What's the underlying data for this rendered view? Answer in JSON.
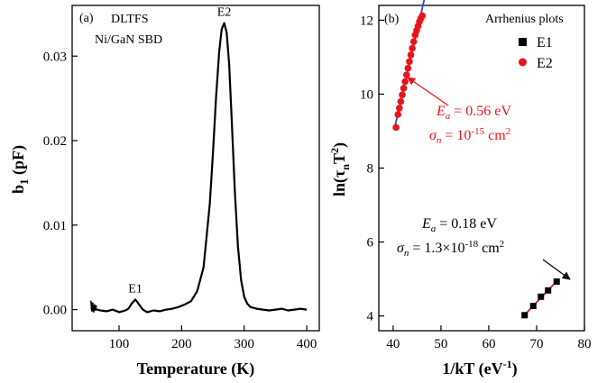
{
  "chart_data": [
    {
      "type": "line",
      "panel_label": "(a)",
      "annotations": [
        "DLTFS",
        "Ni/GaN SBD"
      ],
      "xlabel": "Temperature (K)",
      "ylabel_main": "b",
      "ylabel_sub": "1",
      "ylabel_unit": " (pF)",
      "xlim": [
        25,
        420
      ],
      "ylim": [
        -0.0025,
        0.036
      ],
      "xticks": [
        100,
        200,
        300,
        400
      ],
      "yticks": [
        0.0,
        0.01,
        0.02,
        0.03
      ],
      "ytick_labels": [
        "0.00",
        "0.01",
        "0.02",
        "0.03"
      ],
      "peaks": [
        {
          "label": "E1",
          "x": 126,
          "y": 0.0012
        },
        {
          "label": "E2",
          "x": 268,
          "y": 0.0339
        }
      ],
      "series": [
        {
          "color": "#000000",
          "x": [
            55,
            60,
            70,
            80,
            90,
            100,
            110,
            115,
            120,
            126,
            132,
            138,
            145,
            155,
            165,
            175,
            185,
            195,
            205,
            215,
            225,
            235,
            245,
            250,
            255,
            260,
            264,
            268,
            272,
            276,
            280,
            285,
            290,
            295,
            300,
            305,
            310,
            320,
            330,
            340,
            350,
            360,
            370,
            380,
            390,
            400
          ],
          "y": [
            0.0002,
            0.0001,
            -0.0001,
            -0.0002,
            0.0,
            -0.0003,
            -0.0001,
            0.0001,
            0.0007,
            0.0012,
            0.0006,
            0.0,
            -0.0003,
            -0.0001,
            -0.0002,
            0.0,
            0.0001,
            0.0003,
            0.0006,
            0.001,
            0.0022,
            0.005,
            0.0125,
            0.0185,
            0.025,
            0.0305,
            0.0332,
            0.0339,
            0.0328,
            0.029,
            0.0225,
            0.014,
            0.0075,
            0.0035,
            0.0015,
            0.0007,
            0.0003,
            0.0001,
            0.0,
            -0.0001,
            0.0,
            0.0001,
            -0.0001,
            0.0,
            0.0001,
            0.0
          ]
        }
      ]
    },
    {
      "type": "scatter",
      "panel_label": "(b)",
      "title": "Arrhenius plots",
      "xlabel": "1/kT (eV",
      "xlabel_sup": "-1",
      "xlabel_end": ")",
      "ylabel_main": "ln(",
      "ylabel_sym": "τ",
      "ylabel_sub": "n",
      "ylabel_t": "T",
      "ylabel_sup": "2",
      "ylabel_end": ")",
      "xlim": [
        37,
        80
      ],
      "ylim": [
        3.6,
        12.4
      ],
      "xticks": [
        40,
        50,
        60,
        70,
        80
      ],
      "yticks": [
        4,
        6,
        8,
        10,
        12
      ],
      "legend_position": "top-right",
      "series": [
        {
          "name": "E1",
          "color": "#000000",
          "marker": "square",
          "x": [
            67.5,
            69.3,
            70.9,
            72.4,
            74.2
          ],
          "y": [
            4.02,
            4.27,
            4.52,
            4.69,
            4.93
          ],
          "fit_color": "#e8141b"
        },
        {
          "name": "E2",
          "color": "#e8141b",
          "marker": "circle",
          "x": [
            40.6,
            41.0,
            41.3,
            41.6,
            41.9,
            42.2,
            42.5,
            42.8,
            43.1,
            43.4,
            43.7,
            44.0,
            44.3,
            44.6,
            44.9,
            45.2,
            45.5,
            45.8,
            46.1
          ],
          "y": [
            9.1,
            9.45,
            9.62,
            9.8,
            9.98,
            10.16,
            10.34,
            10.52,
            10.7,
            10.88,
            11.06,
            11.24,
            11.42,
            11.6,
            11.72,
            11.84,
            11.96,
            12.05,
            12.12
          ],
          "fit_color": "#3344cc"
        }
      ],
      "annotations": {
        "E2": {
          "ea_sym": "E",
          "ea_sub": "a",
          "ea_val": " = 0.56 eV",
          "sig_sym": "σ",
          "sig_sub": "n",
          "sig_val": " = 10",
          "sig_sup": "-15",
          "sig_unit": " cm",
          "sig_unit_sup": "2",
          "color": "#e8141b"
        },
        "E1": {
          "ea_sym": "E",
          "ea_sub": "a",
          "ea_val": " = 0.18 eV",
          "sig_sym": "σ",
          "sig_sub": "n",
          "sig_val": " = 1.3×10",
          "sig_sup": "-18",
          "sig_unit": " cm",
          "sig_unit_sup": "2",
          "color": "#000000"
        }
      }
    }
  ]
}
